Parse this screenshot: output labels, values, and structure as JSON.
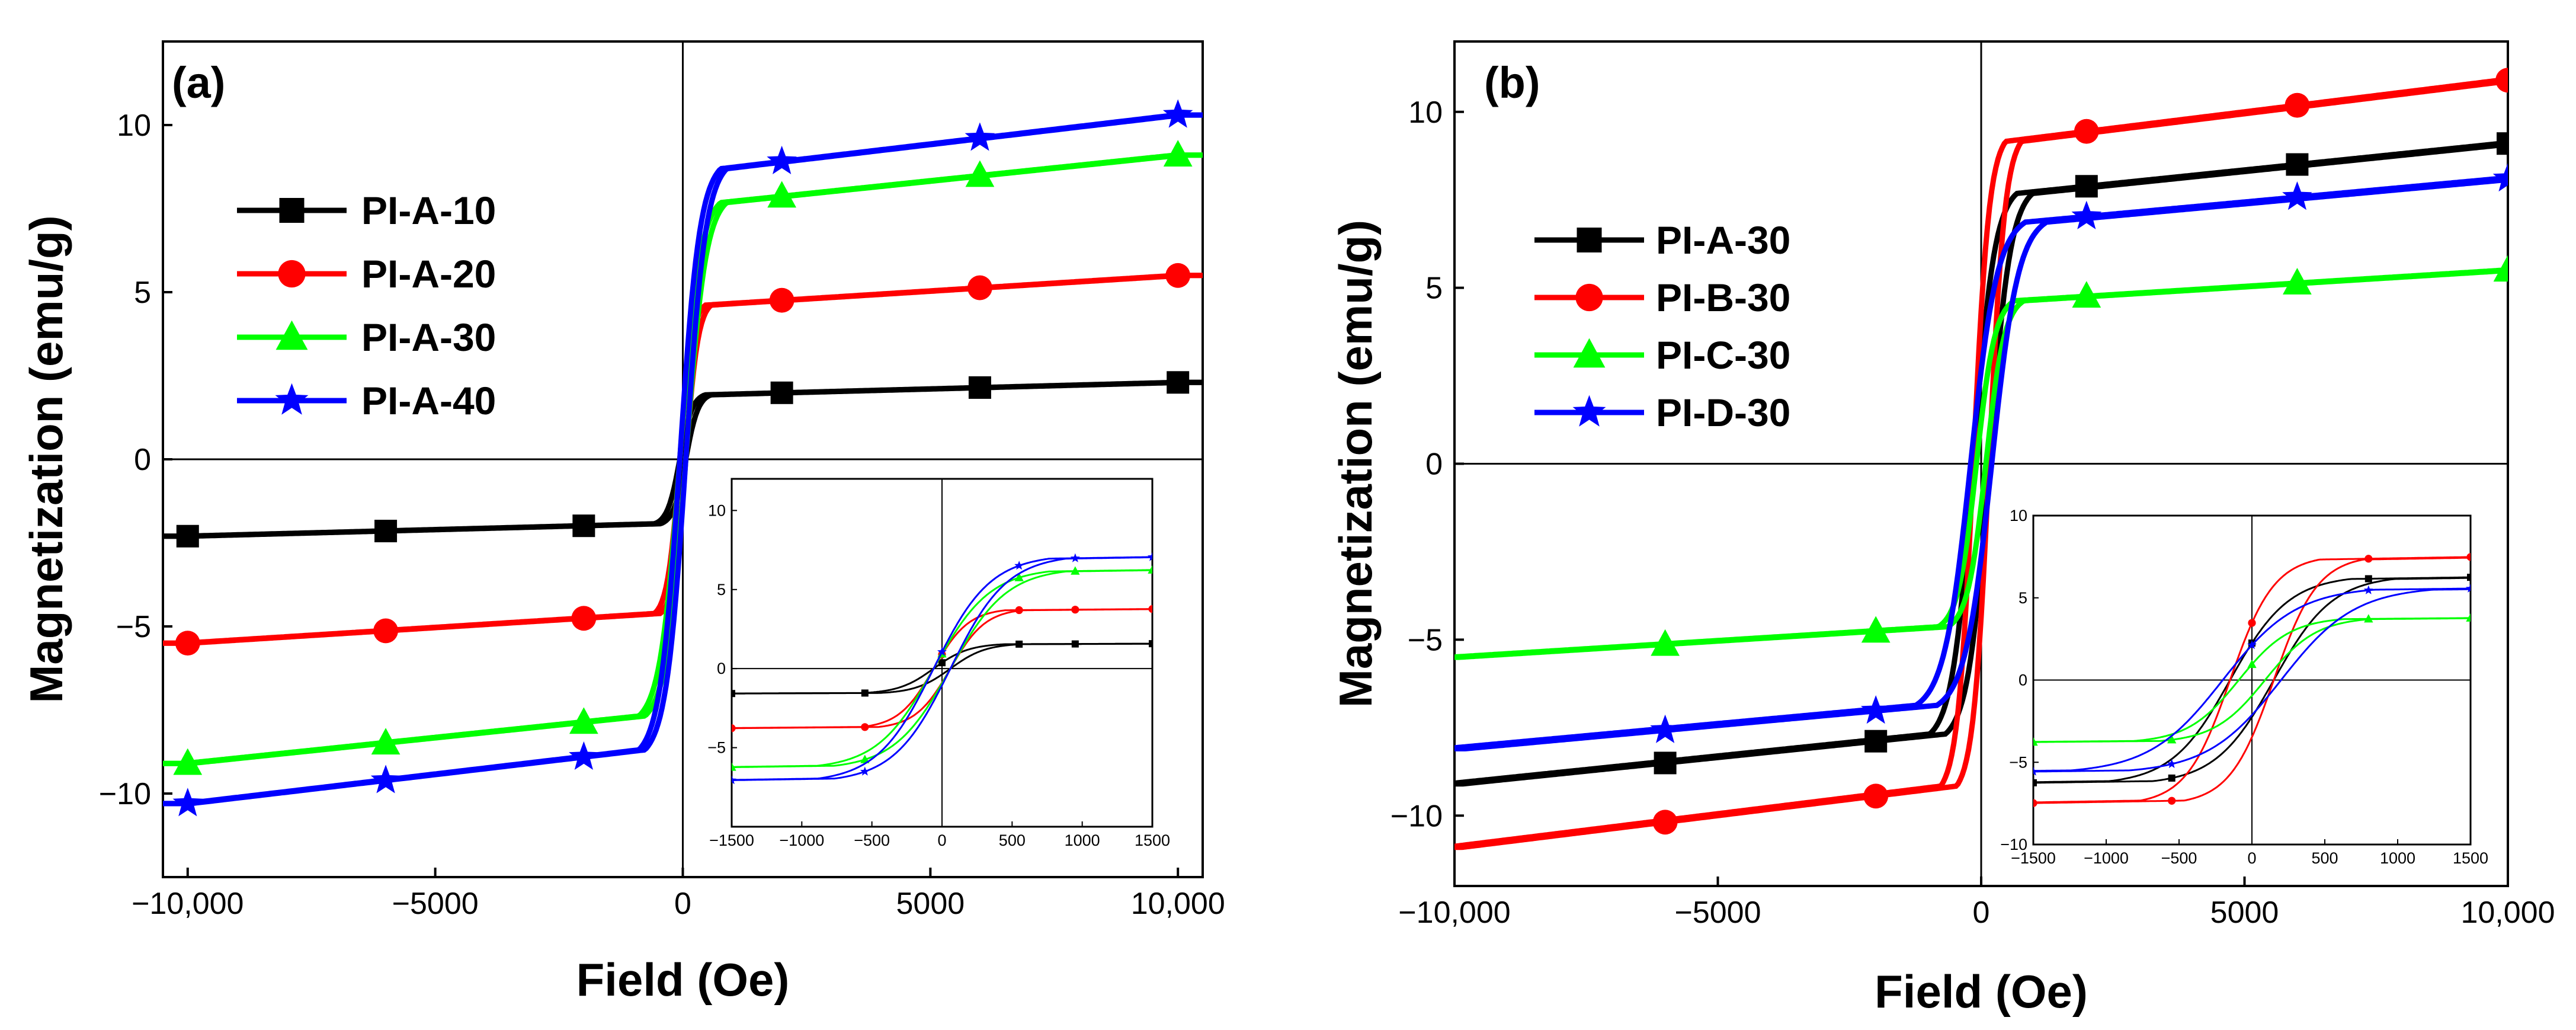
{
  "chart_data": [
    {
      "type": "line",
      "panel_label": "(a)",
      "xlabel": "Field (Oe)",
      "ylabel": "Magnetization (emu/g)",
      "xlim": [
        -10500,
        10500
      ],
      "ylim": [
        -12.5,
        12.5
      ],
      "xticks": [
        -10000,
        -5000,
        0,
        5000,
        10000
      ],
      "xtick_labels": [
        "−10,000",
        "−5000",
        "0",
        "5000",
        "10,000"
      ],
      "yticks": [
        -10,
        -5,
        0,
        5,
        10
      ],
      "ytick_labels": [
        "−10",
        "−5",
        "0",
        "5",
        "10"
      ],
      "legend_position": "upper-left",
      "series": [
        {
          "name": "PI-A-10",
          "color": "#000000",
          "marker": "square",
          "ms": 2.3,
          "hc": 60,
          "a": 250,
          "b": 2e-05,
          "marker_x": [
            -10000,
            -6000,
            -2000,
            2000,
            6000,
            10000
          ]
        },
        {
          "name": "PI-A-20",
          "color": "#ff0000",
          "marker": "circle",
          "ms": 5.5,
          "hc": 60,
          "a": 250,
          "b": 2e-05,
          "marker_x": [
            -10000,
            -6000,
            -2000,
            2000,
            6000,
            10000
          ]
        },
        {
          "name": "PI-A-30",
          "color": "#00ff00",
          "marker": "triangle",
          "ms": 9.1,
          "hc": 60,
          "a": 400,
          "b": 3e-05,
          "marker_x": [
            -10000,
            -6000,
            -2000,
            2000,
            6000,
            10000
          ]
        },
        {
          "name": "PI-A-40",
          "color": "#0000ff",
          "marker": "star",
          "ms": 10.3,
          "hc": 60,
          "a": 400,
          "b": 5e-05,
          "marker_x": [
            -10000,
            -6000,
            -2000,
            2000,
            6000,
            10000
          ]
        }
      ],
      "inset": {
        "xlim": [
          -1500,
          1500
        ],
        "ylim": [
          -10,
          12
        ],
        "xticks": [
          -1500,
          -1000,
          -500,
          0,
          500,
          1000,
          1500
        ],
        "xtick_labels": [
          "−1500",
          "−1000",
          "−500",
          "0",
          "500",
          "1000",
          "1500"
        ],
        "yticks": [
          -5,
          0,
          5,
          10
        ],
        "ytick_labels": [
          "−5",
          "0",
          "5",
          "10"
        ],
        "marker_x": [
          -1500,
          -550,
          0,
          550,
          950,
          1500
        ]
      }
    },
    {
      "type": "line",
      "panel_label": "(b)",
      "xlabel": "Field (Oe)",
      "ylabel": "Magnetization (emu/g)",
      "xlim": [
        -10000,
        10000
      ],
      "ylim": [
        -12,
        12
      ],
      "xticks": [
        -10000,
        -5000,
        0,
        5000,
        10000
      ],
      "xtick_labels": [
        "−10,000",
        "−5000",
        "0",
        "5000",
        "10,000"
      ],
      "yticks": [
        -10,
        -5,
        0,
        5,
        10
      ],
      "ytick_labels": [
        "−10",
        "−5",
        "0",
        "5",
        "10"
      ],
      "legend_position": "upper-left",
      "series": [
        {
          "name": "PI-A-30",
          "color": "#000000",
          "marker": "square",
          "ms": 9.1,
          "hc": 150,
          "a": 400,
          "b": 3e-05,
          "marker_x": [
            -6000,
            -2000,
            2000,
            6000,
            10000
          ]
        },
        {
          "name": "PI-B-30",
          "color": "#ff0000",
          "marker": "circle",
          "ms": 10.9,
          "hc": 150,
          "a": 300,
          "b": 2e-05,
          "marker_x": [
            -6000,
            -2000,
            2000,
            6000,
            10000
          ]
        },
        {
          "name": "PI-C-30",
          "color": "#00ff00",
          "marker": "triangle",
          "ms": 5.5,
          "hc": 90,
          "a": 350,
          "b": 3e-05,
          "marker_x": [
            -6000,
            -2000,
            2000,
            6000,
            10000
          ]
        },
        {
          "name": "PI-D-30",
          "color": "#0000ff",
          "marker": "star",
          "ms": 8.1,
          "hc": 200,
          "a": 500,
          "b": 4e-05,
          "marker_x": [
            -6000,
            -2000,
            2000,
            6000,
            10000
          ]
        }
      ],
      "inset": {
        "xlim": [
          -1500,
          1500
        ],
        "ylim": [
          -10,
          10
        ],
        "xticks": [
          -1500,
          -1000,
          -500,
          0,
          500,
          1000,
          1500
        ],
        "xtick_labels": [
          "−1500",
          "−1000",
          "−500",
          "0",
          "500",
          "1000",
          "1500"
        ],
        "yticks": [
          -10,
          -5,
          0,
          5,
          10
        ],
        "ytick_labels": [
          "−10",
          "−5",
          "0",
          "5",
          "10"
        ],
        "marker_x": [
          -1500,
          -550,
          0,
          800,
          1500
        ]
      }
    }
  ]
}
